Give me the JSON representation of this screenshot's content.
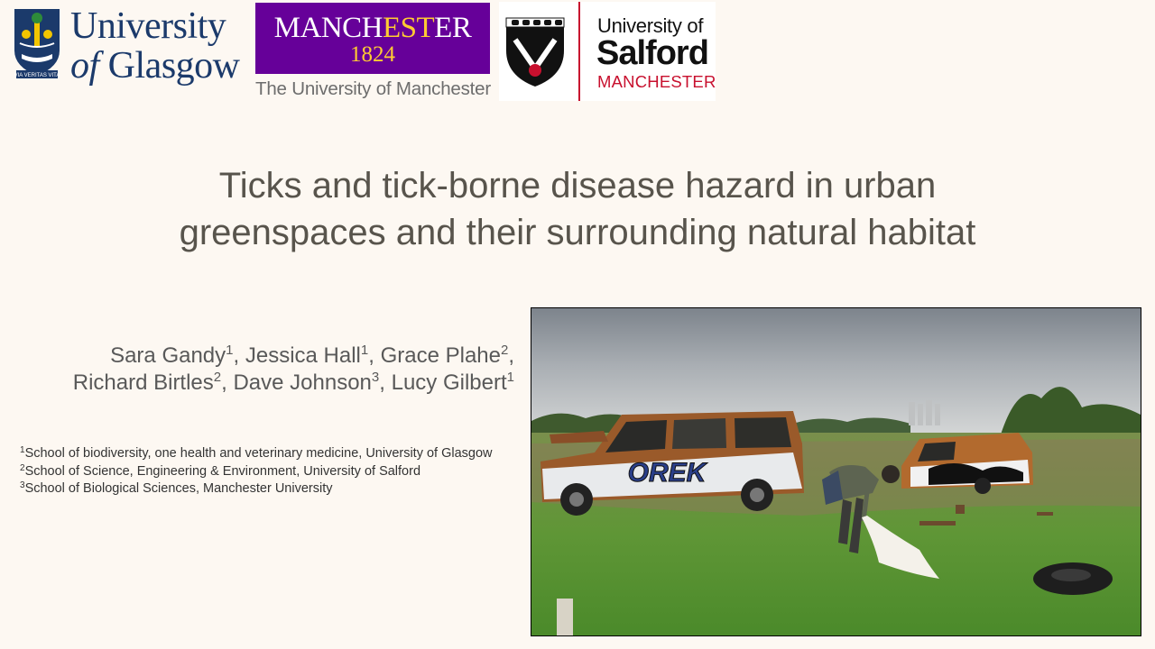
{
  "logos": {
    "glasgow": {
      "line1": "University",
      "line2_of": "of",
      "line2_name": "Glasgow",
      "motto": "VIA VERITAS VITA",
      "color": "#1b3a6b"
    },
    "manchester": {
      "word_a": "MANCH",
      "word_b": "EST",
      "word_c": "ER",
      "year": "1824",
      "subtitle": "The University of Manchester",
      "purple": "#660099",
      "gold": "#ffcc33"
    },
    "salford": {
      "line1": "University of",
      "line2": "Salford",
      "line3": "MANCHESTER",
      "red": "#c8102e"
    }
  },
  "title": {
    "line1": "Ticks and tick-borne disease hazard in urban",
    "line2": "greenspaces and their surrounding natural habitat"
  },
  "authors": [
    {
      "name": "Sara Gandy",
      "sup": "1",
      "sep": ", "
    },
    {
      "name": "Jessica Hall",
      "sup": "1",
      "sep": ", "
    },
    {
      "name": "Grace Plahe",
      "sup": "2",
      "sep": ","
    },
    {
      "name": "Richard Birtles",
      "sup": "2",
      "sep": ", "
    },
    {
      "name": "Dave Johnson",
      "sup": "3",
      "sep": ", "
    },
    {
      "name": "Lucy Gilbert",
      "sup": "1",
      "sep": ""
    }
  ],
  "affiliations": [
    {
      "sup": "1",
      "text": "School of biodiversity, one health and veterinary medicine, University of Glasgow"
    },
    {
      "sup": "2",
      "text": "School of Science, Engineering & Environment, University of Salford"
    },
    {
      "sup": "3",
      "text": "School of Biological Sciences, Manchester University"
    }
  ],
  "photo": {
    "subject": "field-with-burnt-out-vans-and-person-dragging-white-cloth",
    "graffiti_text": "OREK"
  }
}
